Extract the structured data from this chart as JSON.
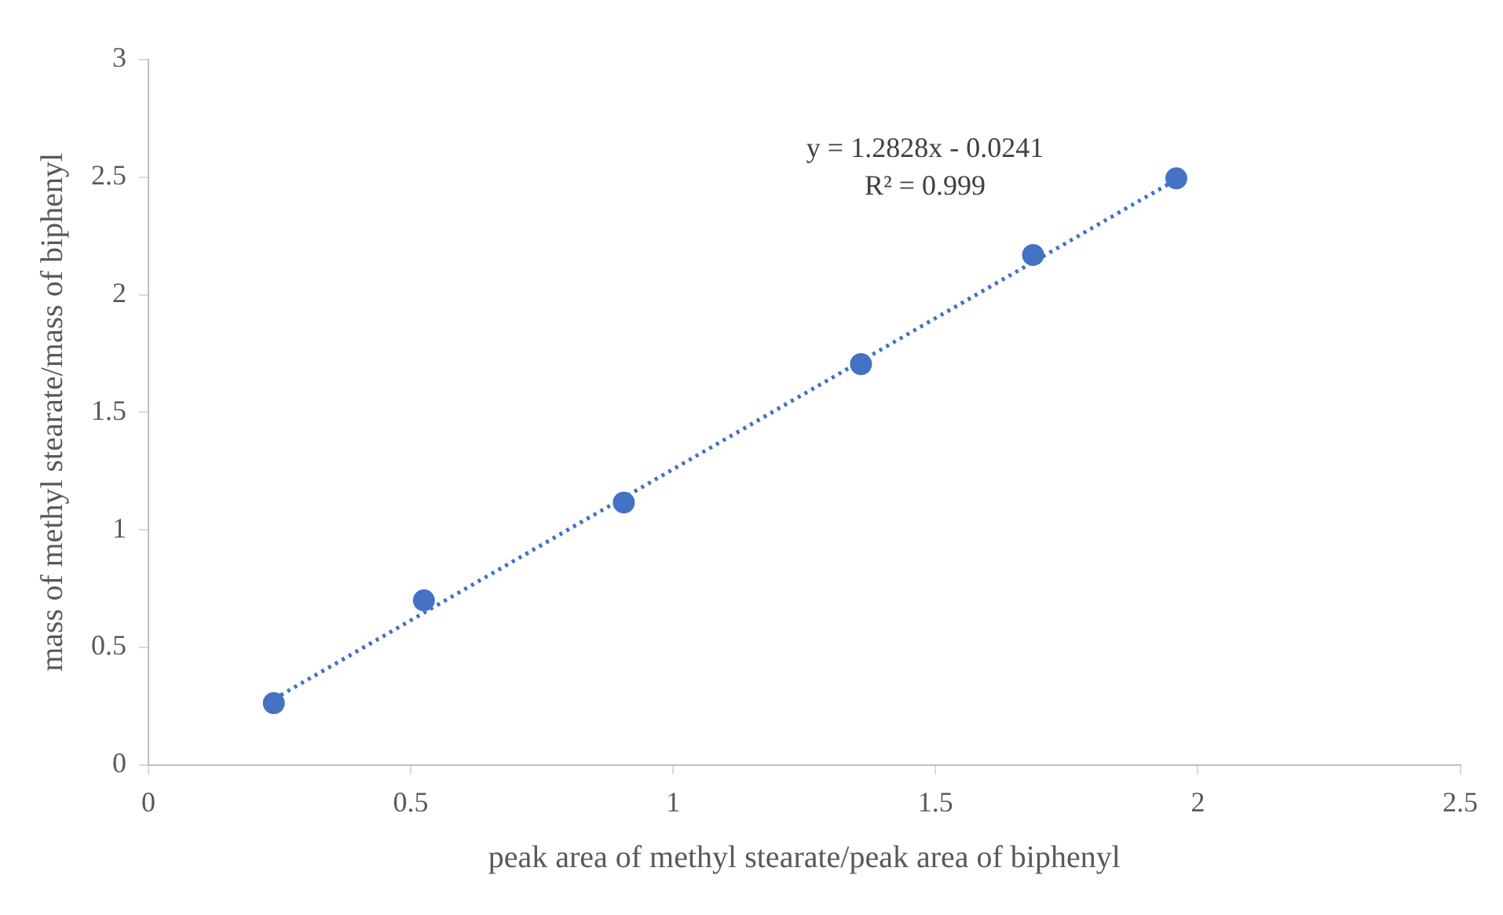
{
  "chart_data": {
    "type": "scatter",
    "xlabel": "peak area of methyl stearate/peak area of biphenyl",
    "ylabel": "mass of methyl stearate/mass of biphenyl",
    "x": [
      0.239,
      0.525,
      0.906,
      1.358,
      1.686,
      1.959
    ],
    "series": [
      {
        "type": "scatter",
        "color": "#4472c4",
        "values": [
          0.263,
          0.7,
          1.116,
          1.705,
          2.169,
          2.495
        ],
        "marker": "circle"
      },
      {
        "type": "line",
        "color": "#4472c4",
        "x": [
          0.239,
          1.959
        ],
        "values": [
          0.28,
          2.49
        ],
        "line_style": "dotted",
        "marker": "none"
      }
    ],
    "annotations": [
      "y = 1.2828x - 0.0241",
      "R² = 0.999"
    ],
    "xlim": [
      0,
      2.5
    ],
    "xticks": [
      0,
      0.5,
      1,
      1.5,
      2,
      2.5
    ],
    "ylim": [
      0,
      3
    ],
    "yticks": [
      0,
      0.5,
      1,
      1.5,
      2,
      2.5,
      3
    ],
    "grid": false,
    "legend": false
  }
}
